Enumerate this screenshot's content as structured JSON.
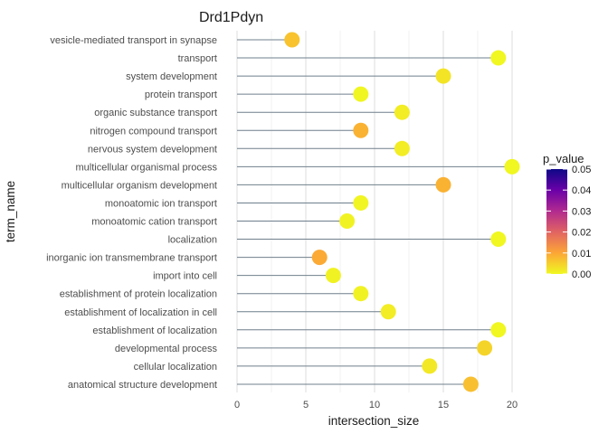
{
  "chart_data": {
    "type": "lollipop",
    "title": "Drd1Pdyn",
    "xlabel": "intersection_size",
    "ylabel": "term_name",
    "xlim": [
      0,
      21
    ],
    "x_ticks": [
      0,
      5,
      10,
      15,
      20
    ],
    "x_tick_labels": [
      "0",
      "5",
      "10",
      "15",
      "20"
    ],
    "grid": true,
    "legend": {
      "title": "p_value",
      "position": "right",
      "ticks": [
        0.05,
        0.04,
        0.03,
        0.02,
        0.01,
        0.0
      ],
      "tick_labels": [
        "0.05",
        "0.04",
        "0.03",
        "0.02",
        "0.01",
        "0.00"
      ],
      "range": [
        0,
        0.05
      ],
      "colors": [
        "#F0F921",
        "#FCA636",
        "#E16462",
        "#B12A90",
        "#6A00A8",
        "#0D0887"
      ]
    },
    "categories": [
      "vesicle-mediated transport in synapse",
      "transport",
      "system development",
      "protein transport",
      "organic substance transport",
      "nitrogen compound transport",
      "nervous system development",
      "multicellular organismal process",
      "multicellular organism development",
      "monoatomic ion transport",
      "monoatomic cation transport",
      "localization",
      "inorganic ion transmembrane transport",
      "import into cell",
      "establishment of protein localization",
      "establishment of localization in cell",
      "establishment of localization",
      "developmental process",
      "cellular localization",
      "anatomical structure development"
    ],
    "values": [
      4,
      19,
      15,
      9,
      12,
      9,
      12,
      20,
      15,
      9,
      8,
      19,
      6,
      7,
      9,
      11,
      19,
      18,
      14,
      17
    ],
    "p_values": [
      0.0065,
      0.0002,
      0.0025,
      0.0004,
      0.0015,
      0.0085,
      0.0015,
      0.0002,
      0.0085,
      0.0005,
      0.0008,
      0.0002,
      0.0095,
      0.0008,
      0.0008,
      0.0015,
      0.0002,
      0.0045,
      0.002,
      0.007
    ]
  }
}
